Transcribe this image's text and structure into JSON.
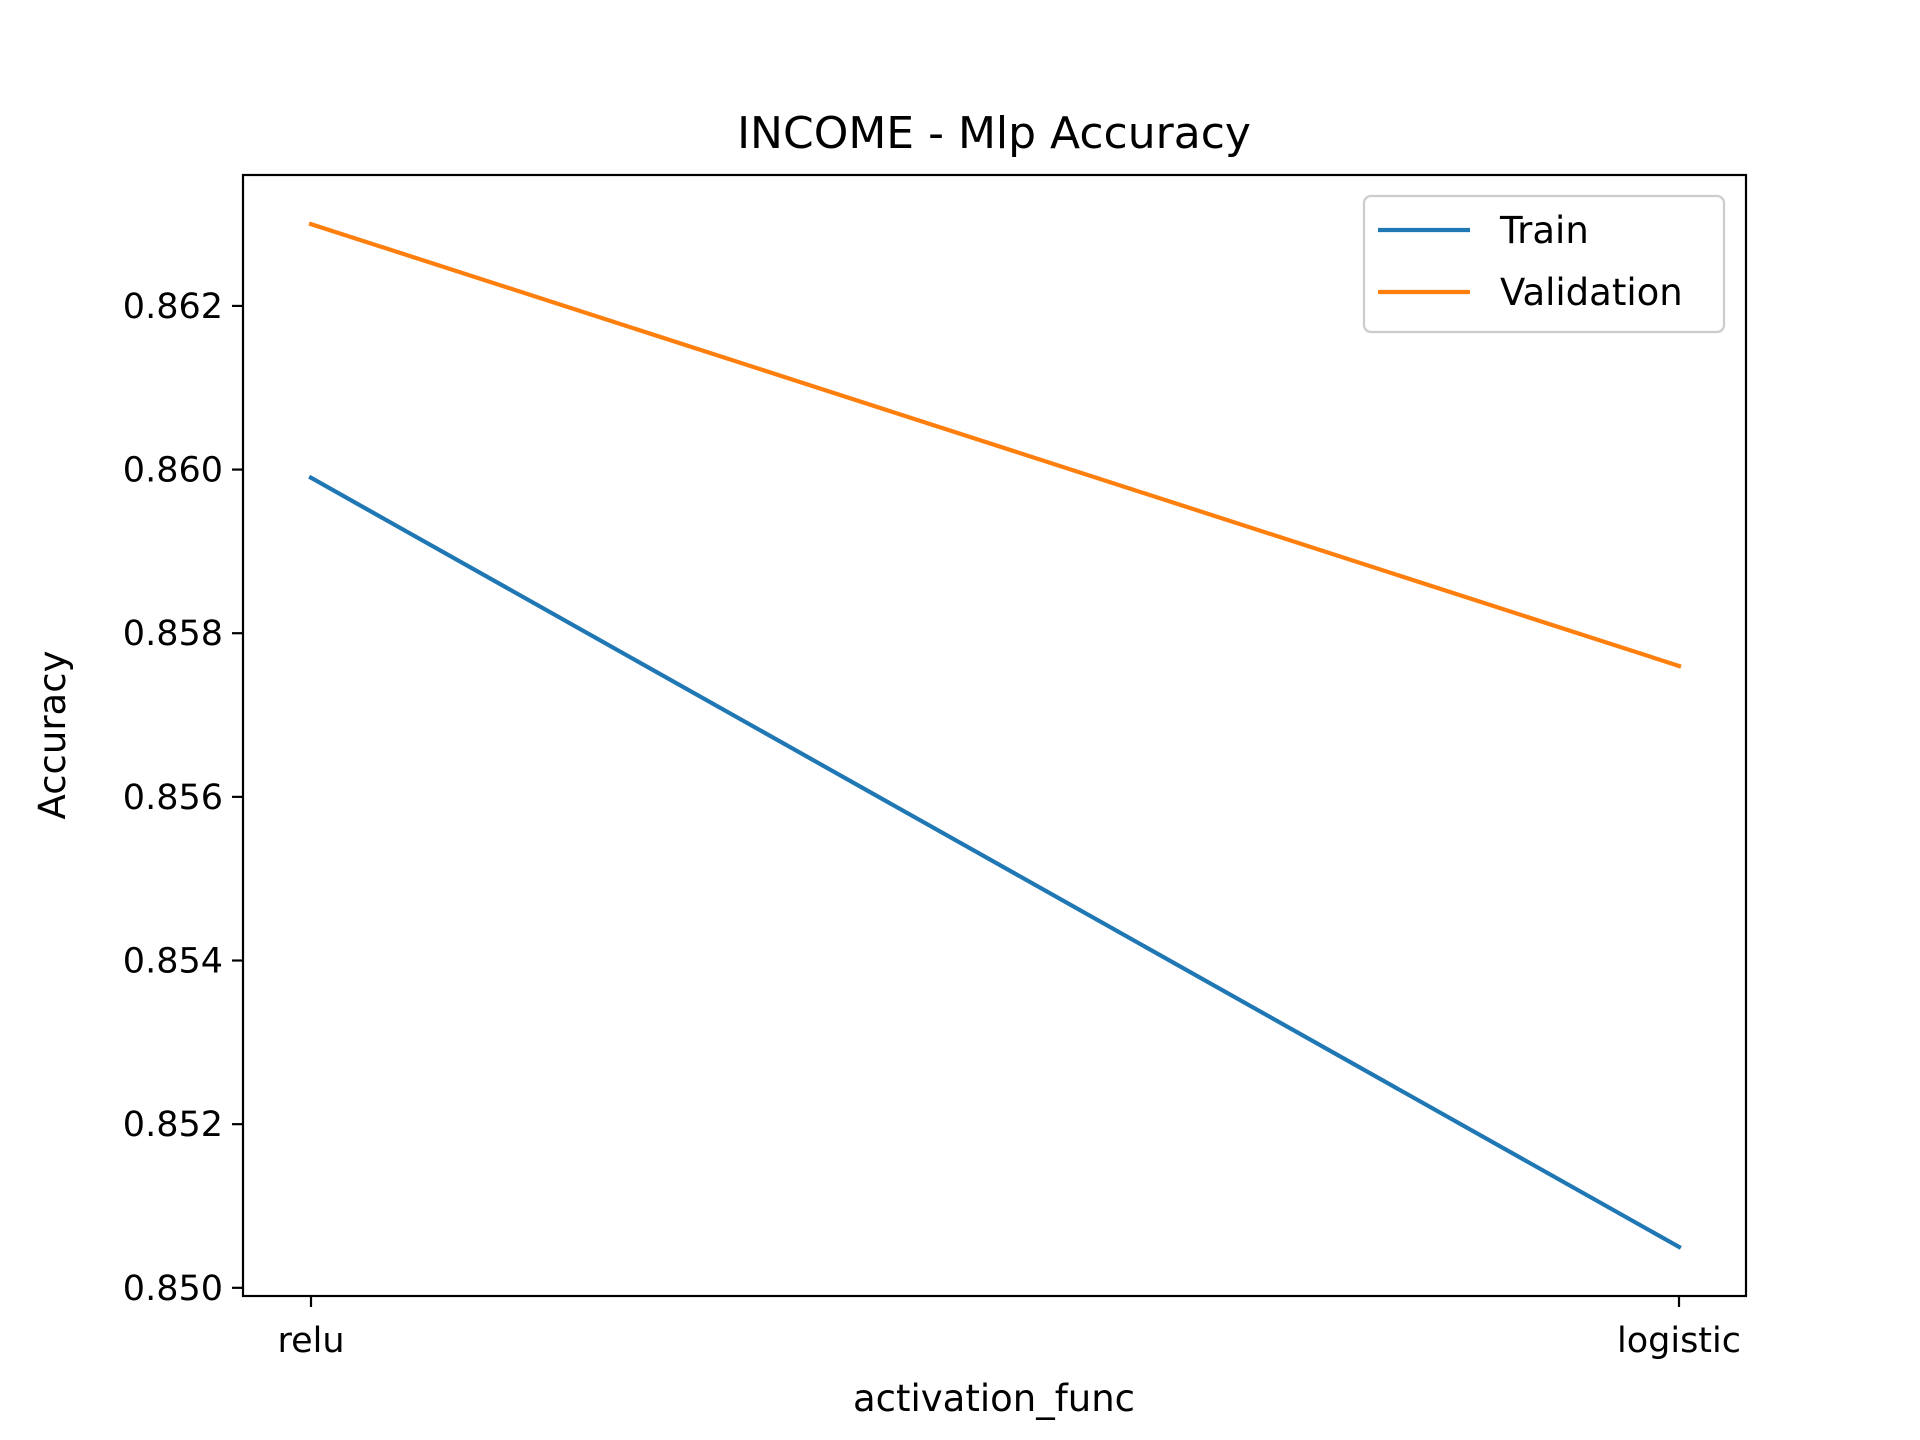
{
  "chart_data": {
    "type": "line",
    "title": "INCOME - Mlp Accuracy",
    "xlabel": "activation_func",
    "ylabel": "Accuracy",
    "categories": [
      "relu",
      "logistic"
    ],
    "series": [
      {
        "name": "Train",
        "values": [
          0.8599,
          0.8505
        ],
        "color": "#1f77b4"
      },
      {
        "name": "Validation",
        "values": [
          0.863,
          0.8576
        ],
        "color": "#ff7f0e"
      }
    ],
    "ylim": [
      0.8499,
      0.8636
    ],
    "yticks": [
      "0.850",
      "0.852",
      "0.854",
      "0.856",
      "0.858",
      "0.860",
      "0.862"
    ],
    "grid": false,
    "legend_position": "top-right"
  }
}
